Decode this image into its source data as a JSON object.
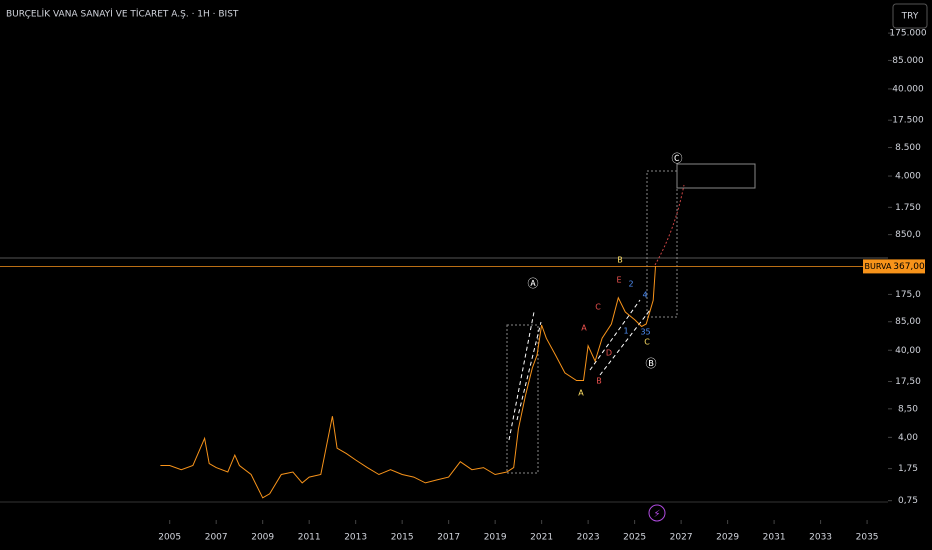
{
  "header": {
    "title": "BURÇELİK VANA SANAYİ VE TİCARET A.Ş. · 1H · BIST",
    "currency_button": "TRY"
  },
  "chart_data": {
    "type": "line",
    "log_scale": true,
    "grid": false,
    "symbol": "BURVA",
    "last_price": {
      "value": 367,
      "label": "367,00"
    },
    "last_price_color": "#f7931a",
    "x": [
      2004.6,
      2005.0,
      2005.5,
      2006.0,
      2006.5,
      2006.7,
      2007.0,
      2007.5,
      2007.8,
      2008.0,
      2008.5,
      2009.0,
      2009.3,
      2009.8,
      2010.3,
      2010.7,
      2011.0,
      2011.5,
      2012.0,
      2012.2,
      2012.6,
      2013.0,
      2013.5,
      2014.0,
      2014.5,
      2015.0,
      2015.5,
      2016.0,
      2016.5,
      2017.0,
      2017.5,
      2018.0,
      2018.5,
      2019.0,
      2019.5,
      2019.8,
      2020.0,
      2020.3,
      2020.6,
      2020.8,
      2021.0,
      2021.2,
      2021.6,
      2022.0,
      2022.5,
      2022.8,
      2023.0,
      2023.3,
      2023.6,
      2024.0,
      2024.3,
      2024.6,
      2025.0,
      2025.3,
      2025.5,
      2025.8,
      2025.9
    ],
    "series": [
      {
        "name": "BURVA",
        "color": "#f7931a",
        "values": [
          1.9,
          1.9,
          1.7,
          1.9,
          3.9,
          2.0,
          1.8,
          1.6,
          2.5,
          1.9,
          1.5,
          0.81,
          0.9,
          1.5,
          1.6,
          1.2,
          1.4,
          1.5,
          7.0,
          3.0,
          2.6,
          2.2,
          1.8,
          1.5,
          1.7,
          1.5,
          1.4,
          1.2,
          1.3,
          1.4,
          2.1,
          1.7,
          1.8,
          1.5,
          1.6,
          1.8,
          5.0,
          12,
          25,
          35,
          78,
          55,
          35,
          22,
          18,
          18,
          45,
          30,
          55,
          80,
          160,
          110,
          90,
          75,
          80,
          150,
          367
        ]
      }
    ],
    "xlim": [
      1997.7,
      2035.9
    ],
    "xticks": [
      2005,
      2007,
      2009,
      2011,
      2013,
      2015,
      2017,
      2019,
      2021,
      2023,
      2025,
      2027,
      2029,
      2031,
      2033,
      2035
    ],
    "ylim": [
      0.45,
      420000
    ],
    "yticks": [
      {
        "value": 175000,
        "label": "175.000"
      },
      {
        "value": 85000,
        "label": "85.000"
      },
      {
        "value": 40000,
        "label": "40.000"
      },
      {
        "value": 17500,
        "label": "17.500"
      },
      {
        "value": 8500,
        "label": "8.500"
      },
      {
        "value": 4000,
        "label": "4.000"
      },
      {
        "value": 1750,
        "label": "1.750"
      },
      {
        "value": 850,
        "label": "850,0"
      },
      {
        "value": 175,
        "label": "175,0"
      },
      {
        "value": 85,
        "label": "85,00"
      },
      {
        "value": 40,
        "label": "40,00"
      },
      {
        "value": 17.5,
        "label": "17,50"
      },
      {
        "value": 8.5,
        "label": "8,50"
      },
      {
        "value": 4,
        "label": "4,00"
      },
      {
        "value": 1.75,
        "label": "1,75"
      },
      {
        "value": 0.75,
        "label": "0,75"
      }
    ],
    "annotations": [
      "Ⓐ",
      "Ⓑ",
      "Ⓒ",
      "A",
      "B",
      "C",
      "D",
      "E",
      "B",
      "A",
      "1",
      "2",
      "3",
      "4",
      "5",
      "C"
    ]
  }
}
